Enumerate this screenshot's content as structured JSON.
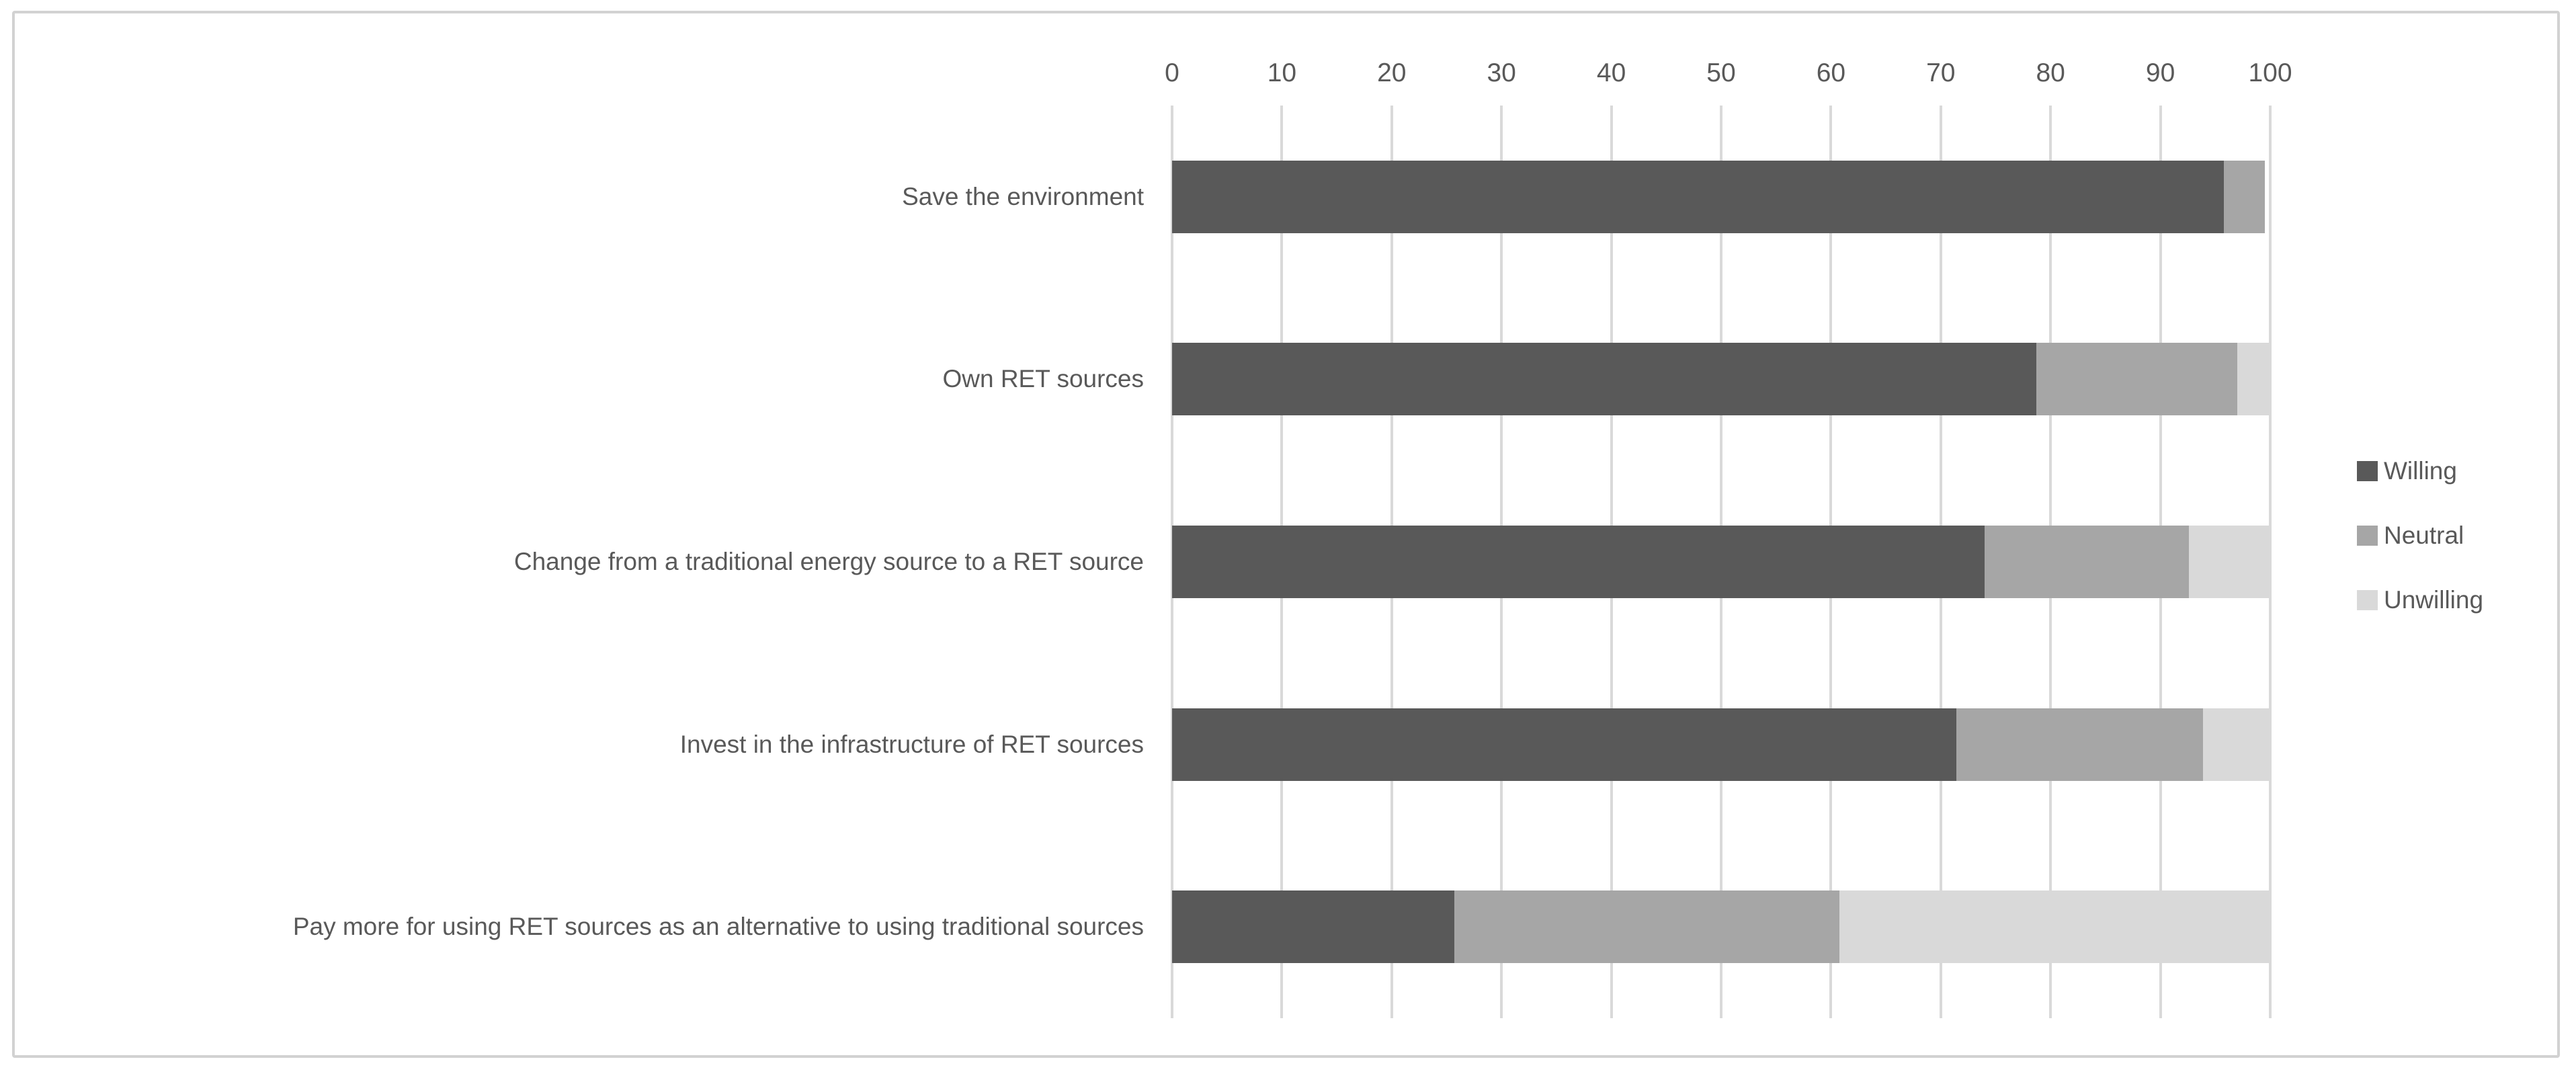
{
  "figure": {
    "background_color": "#ffffff",
    "border_color": "#d2d2d2",
    "gridline_color": "#d9d9d9",
    "text_color": "#595959"
  },
  "chart_data": {
    "type": "bar",
    "orientation": "horizontal-stacked",
    "title": "",
    "xlabel": "",
    "ylabel": "",
    "xlim": [
      0,
      100
    ],
    "xticks": [
      0,
      10,
      20,
      30,
      40,
      50,
      60,
      70,
      80,
      90,
      100
    ],
    "xtick_position": "top",
    "grid": true,
    "legend_position": "right",
    "categories": [
      "Save the environment",
      "Own  RET sources",
      "Change from a traditional energy source to a RET source",
      "Invest in the infrastructure of RET sources",
      "Pay more for using RET sources as an alternative to using traditional sources"
    ],
    "series": [
      {
        "name": "Willing",
        "color": "#595959",
        "values": [
          95.8,
          78.7,
          74.0,
          71.4,
          25.7
        ]
      },
      {
        "name": "Neutral",
        "color": "#a6a6a6",
        "values": [
          3.7,
          18.3,
          18.6,
          22.5,
          35.1
        ]
      },
      {
        "name": "Unwilling",
        "color": "#d9d9d9",
        "values": [
          0.0,
          3.0,
          7.4,
          6.1,
          39.2
        ]
      }
    ]
  }
}
